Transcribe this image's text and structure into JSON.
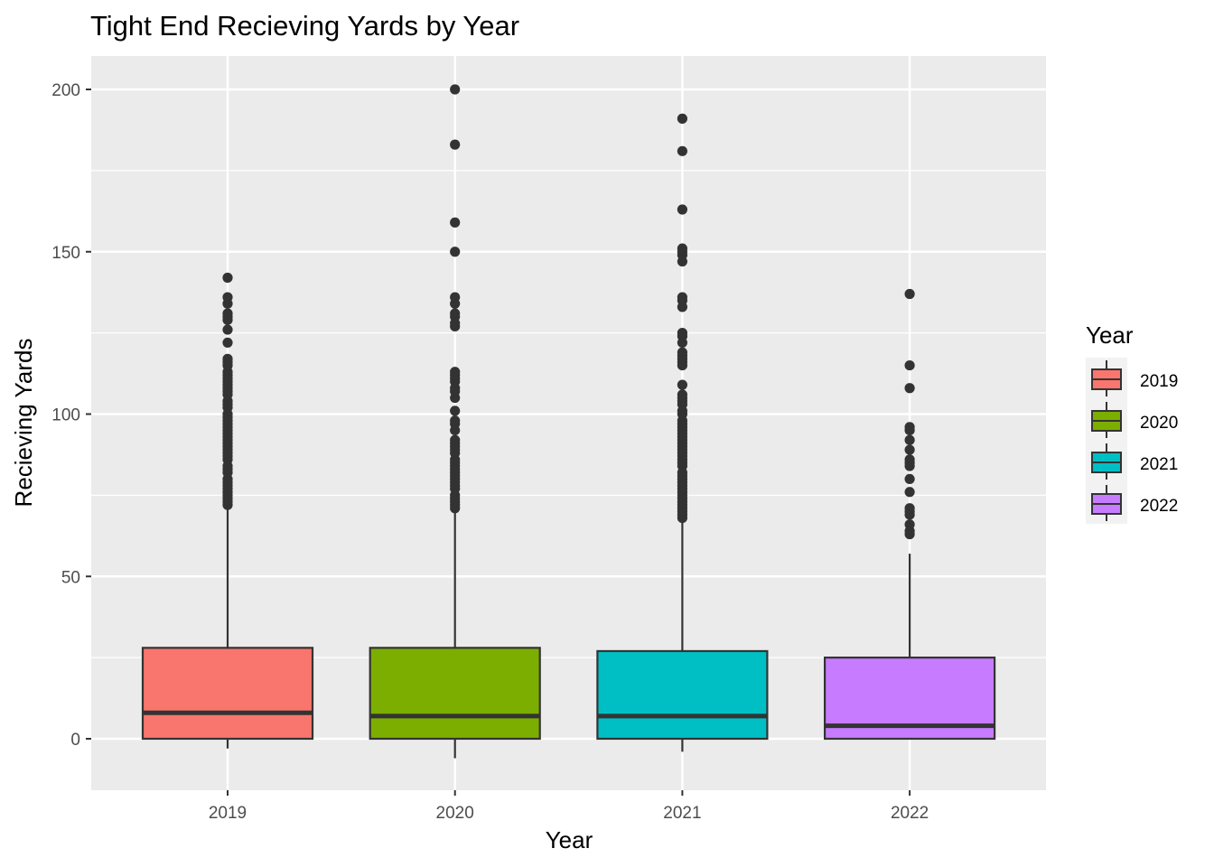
{
  "chart_data": {
    "type": "boxplot",
    "title": "Tight End Recieving Yards by Year",
    "xlabel": "Year",
    "ylabel": "Recieving Yards",
    "categories": [
      "2019",
      "2020",
      "2021",
      "2022"
    ],
    "ylim": [
      -16,
      210
    ],
    "yticks": [
      0,
      50,
      100,
      150,
      200
    ],
    "grid": true,
    "legend": {
      "title": "Year",
      "position": "right",
      "entries": [
        "2019",
        "2020",
        "2021",
        "2022"
      ]
    },
    "colors": [
      "#F8766D",
      "#7CAE00",
      "#00BFC4",
      "#C77CFF"
    ],
    "boxes": [
      {
        "name": "2019",
        "whisker_low": -3,
        "q1": 0,
        "median": 8,
        "q3": 28,
        "whisker_high": 71,
        "outliers": [
          72,
          73,
          74,
          75,
          76,
          77,
          78,
          79,
          80,
          82,
          83,
          84,
          86,
          87,
          88,
          89,
          90,
          91,
          92,
          93,
          94,
          95,
          96,
          97,
          98,
          99,
          100,
          102,
          103,
          104,
          106,
          107,
          108,
          109,
          110,
          111,
          112,
          113,
          115,
          116,
          117,
          122,
          126,
          129,
          130,
          131,
          134,
          136,
          142
        ]
      },
      {
        "name": "2020",
        "whisker_low": -6,
        "q1": 0,
        "median": 7,
        "q3": 28,
        "whisker_high": 70,
        "outliers": [
          71,
          72,
          73,
          74,
          75,
          77,
          78,
          79,
          80,
          81,
          82,
          83,
          84,
          85,
          86,
          88,
          89,
          90,
          91,
          92,
          95,
          97,
          98,
          101,
          105,
          107,
          108,
          110,
          111,
          112,
          113,
          127,
          128,
          130,
          131,
          134,
          136,
          150,
          159,
          183,
          200
        ]
      },
      {
        "name": "2021",
        "whisker_low": -4,
        "q1": 0,
        "median": 7,
        "q3": 27,
        "whisker_high": 67,
        "outliers": [
          68,
          69,
          70,
          71,
          72,
          73,
          74,
          75,
          76,
          77,
          78,
          79,
          80,
          81,
          82,
          84,
          85,
          86,
          87,
          88,
          89,
          90,
          91,
          92,
          93,
          94,
          95,
          96,
          97,
          98,
          100,
          101,
          103,
          104,
          105,
          106,
          109,
          115,
          116,
          117,
          118,
          119,
          122,
          124,
          125,
          133,
          135,
          136,
          147,
          149,
          150,
          151,
          163,
          181,
          191
        ]
      },
      {
        "name": "2022",
        "whisker_low": 0,
        "q1": 0,
        "median": 4,
        "q3": 25,
        "whisker_high": 57,
        "outliers": [
          63,
          64,
          66,
          69,
          70,
          71,
          76,
          80,
          84,
          85,
          86,
          89,
          92,
          95,
          96,
          108,
          115,
          137
        ]
      }
    ]
  }
}
